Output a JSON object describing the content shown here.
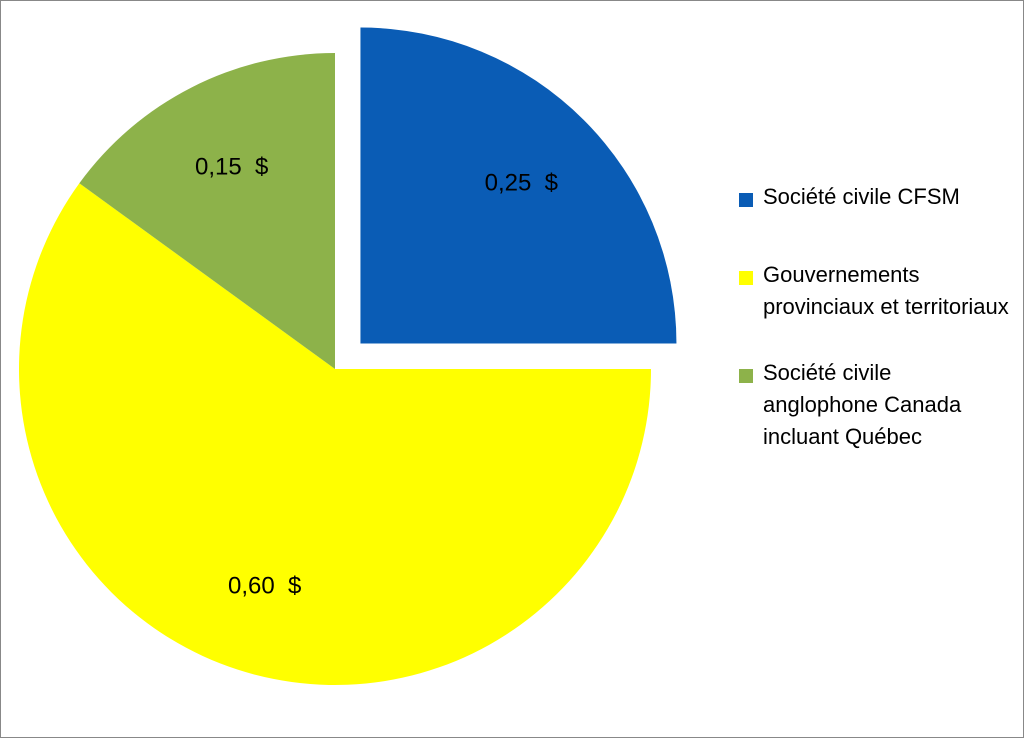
{
  "chart_data": {
    "type": "pie",
    "slices": [
      {
        "label": "Société civile CFSM",
        "value": 0.25,
        "value_label": "0,25  $",
        "color": "#0a5cb5",
        "exploded": true
      },
      {
        "label": "Gouvernements provinciaux et territoriaux",
        "value": 0.6,
        "value_label": "0,60  $",
        "color": "#ffff00",
        "exploded": false
      },
      {
        "label": "Société civile anglophone Canada incluant Québec",
        "value": 0.15,
        "value_label": "0,15  $",
        "color": "#8db24a",
        "exploded": false
      }
    ],
    "legend_position": "right"
  },
  "legend": {
    "items": [
      {
        "text": "Société civile CFSM",
        "color": "#0a5cb5"
      },
      {
        "text": "Gouvernements provinciaux et territoriaux",
        "color": "#ffff00"
      },
      {
        "text": "Société civile anglophone Canada incluant Québec",
        "color": "#8db24a"
      }
    ]
  }
}
